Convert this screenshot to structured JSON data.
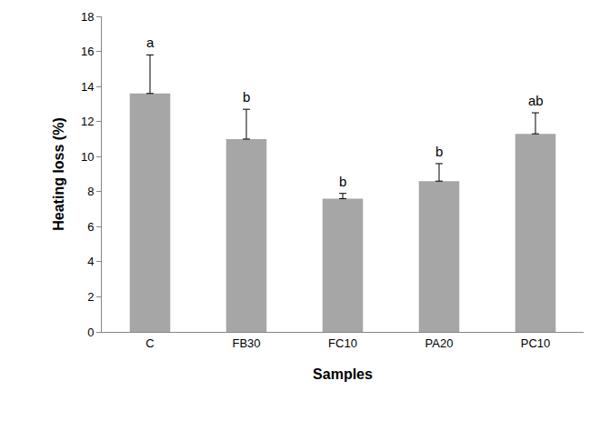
{
  "chart_data": {
    "type": "bar",
    "x_label": "Samples",
    "y_label": "Heating loss (%)",
    "categories": [
      "C",
      "FB30",
      "FC10",
      "PA20",
      "PC10"
    ],
    "values": [
      13.6,
      11.0,
      7.6,
      8.6,
      11.3
    ],
    "errors": [
      2.2,
      1.7,
      0.3,
      1.0,
      1.2
    ],
    "annotations": [
      "a",
      "b",
      "b",
      "b",
      "ab"
    ],
    "color": "#a6a6a6",
    "ylim": [
      0,
      18
    ],
    "yticks": [
      0,
      2,
      4,
      6,
      8,
      10,
      12,
      14,
      16,
      18
    ],
    "grid": false
  }
}
